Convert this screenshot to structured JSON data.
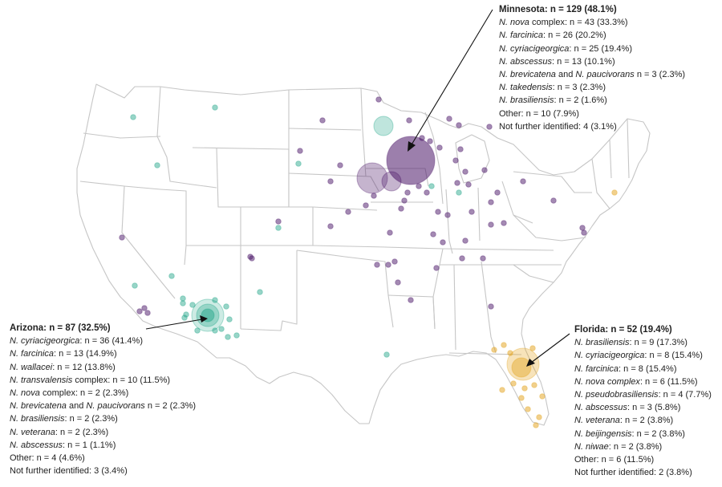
{
  "colors": {
    "minnesota": "#4a1568",
    "arizona": "#1aa284",
    "florida": "#e3a21a",
    "state_border": "#c6c6c6"
  },
  "minnesota": {
    "header": "Minnesota: n = 129 (48.1%)",
    "lines": [
      {
        "sp": "N. nova",
        "rest": " complex: n = 43 (33.3%)"
      },
      {
        "sp": "N. farcinica",
        "rest": ": n = 26 (20.2%)"
      },
      {
        "sp": "N. cyriacigeorgica",
        "rest": ": n = 25 (19.4%)"
      },
      {
        "sp": "N. abscessus",
        "rest": ": n = 13 (10.1%)"
      },
      {
        "sp": "N. brevicatena",
        "mid": " and ",
        "sp2": "N. paucivorans",
        "rest": " n = 3 (2.3%)"
      },
      {
        "sp": "N. takedensis",
        "rest": ": n = 3 (2.3%)"
      },
      {
        "sp": "N. brasiliensis",
        "rest": ": n = 2 (1.6%)"
      },
      {
        "sp": "",
        "rest": "Other: n = 10 (7.9%)"
      },
      {
        "sp": "",
        "rest": "Not further identified: 4 (3.1%)"
      }
    ]
  },
  "arizona": {
    "header": "Arizona: n = 87 (32.5%)",
    "lines": [
      {
        "sp": "N. cyriacigeorgica",
        "rest": ": n = 36 (41.4%)"
      },
      {
        "sp": "N. farcinica",
        "rest": ": n = 13 (14.9%)"
      },
      {
        "sp": "N. wallacei",
        "rest": ": n = 12 (13.8%)"
      },
      {
        "sp": "N. transvalensis",
        "rest": " complex: n = 10 (11.5%)"
      },
      {
        "sp": "N. nova",
        "rest": " complex: n = 2 (2.3%)"
      },
      {
        "sp": "N. brevicatena",
        "mid": " and ",
        "sp2": "N. paucivorans",
        "rest": " n = 2 (2.3%)"
      },
      {
        "sp": "N. brasiliensis",
        "rest": ": n = 2 (2.3%)"
      },
      {
        "sp": "N. veterana",
        "rest": ": n = 2 (2.3%)"
      },
      {
        "sp": "N. abscessus",
        "rest": ": n = 1 (1.1%)"
      },
      {
        "sp": "",
        "rest": "Other: n = 4 (4.6%)"
      },
      {
        "sp": "",
        "rest": "Not further identified: 3 (3.4%)"
      }
    ]
  },
  "florida": {
    "header": "Florida: n = 52 (19.4%)",
    "lines": [
      {
        "sp": "N. brasiliensis",
        "rest": ": n = 9 (17.3%)"
      },
      {
        "sp": "N. cyriacigeorgica",
        "rest": ": n = 8 (15.4%)"
      },
      {
        "sp": "N. farcinica",
        "rest": ": n = 8 (15.4%)"
      },
      {
        "sp": "N. nova complex",
        "rest": ": n = 6 (11.5%)"
      },
      {
        "sp": "N. pseudobrasiliensis",
        "rest": ": n = 4 (7.7%)"
      },
      {
        "sp": "N. abscessus",
        "rest": ": n = 3 (5.8%)"
      },
      {
        "sp": "N. veterana",
        "rest": ": n = 2 (3.8%)"
      },
      {
        "sp": "N. beijingensis",
        "rest": ": n = 2 (3.8%)"
      },
      {
        "sp": "N. niwae",
        "rest": ": n = 2 (3.8%)"
      },
      {
        "sp": "",
        "rest": "Other: n = 6 (11.5%)"
      },
      {
        "sp": "",
        "rest": "Not further identified: 2 (3.8%)"
      }
    ]
  }
}
